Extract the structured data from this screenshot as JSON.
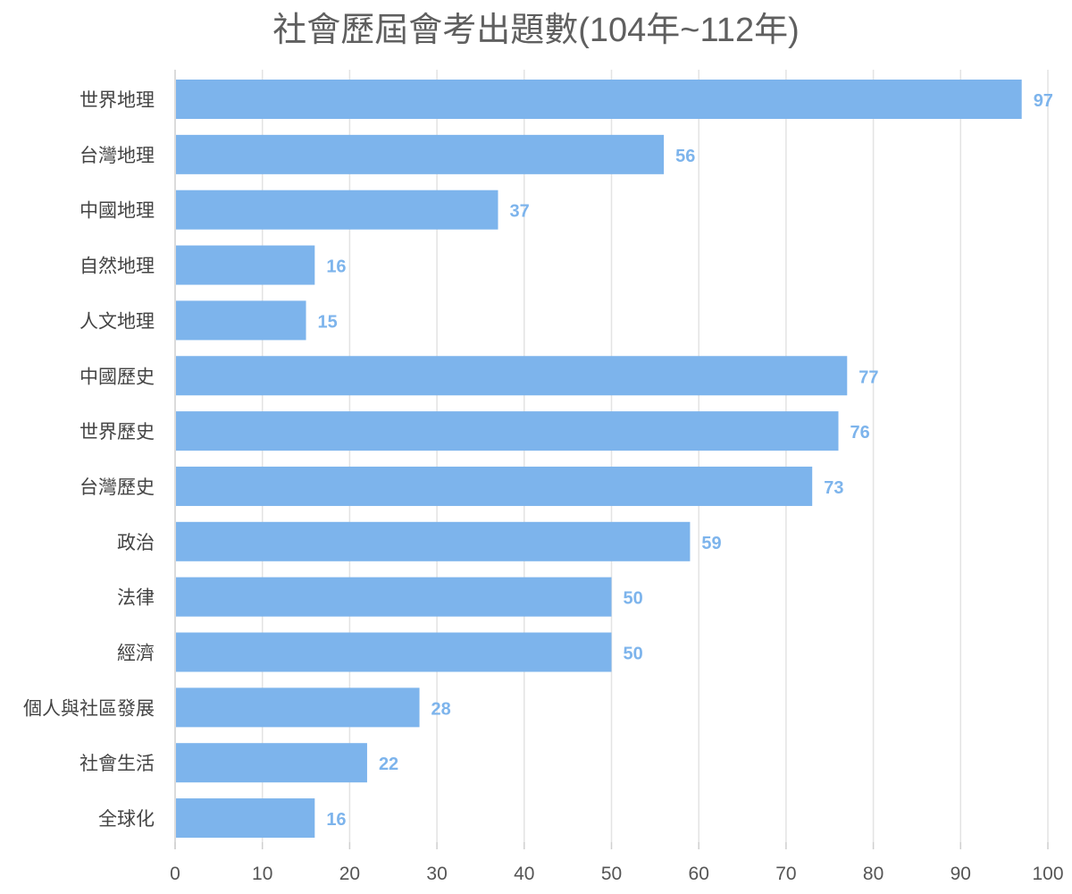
{
  "chart_data": {
    "type": "bar",
    "orientation": "horizontal",
    "title": "社會歷屆會考出題數(104年~112年)",
    "xlabel": "",
    "ylabel": "",
    "xlim": [
      0,
      100
    ],
    "x_ticks": [
      "0",
      "10",
      "20",
      "30",
      "40",
      "50",
      "60",
      "70",
      "80",
      "90",
      "100"
    ],
    "grid": true,
    "categories": [
      "世界地理",
      "台灣地理",
      "中國地理",
      "自然地理",
      "人文地理",
      "中國歷史",
      "世界歷史",
      "台灣歷史",
      "政治",
      "法律",
      "經濟",
      "個人與社區發展",
      "社會生活",
      "全球化"
    ],
    "values": [
      97,
      56,
      37,
      16,
      15,
      77,
      76,
      73,
      59,
      50,
      50,
      28,
      22,
      16
    ],
    "bar_color": "#7db4ec",
    "label_color": "#7db4ec",
    "grid_color": "#e3e3e3"
  }
}
